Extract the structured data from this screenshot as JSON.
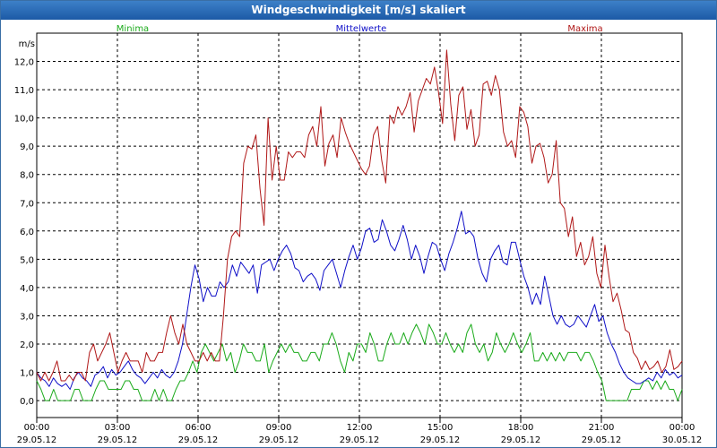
{
  "window": {
    "title": "Windgeschwindigkeit [m/s] skaliert"
  },
  "chart_data": {
    "type": "line",
    "unit": "m/s",
    "ylim": [
      -0.6,
      13.0
    ],
    "y_ticks": [
      "0,0",
      "1,0",
      "2,0",
      "3,0",
      "4,0",
      "5,0",
      "6,0",
      "7,0",
      "8,0",
      "9,0",
      "10,0",
      "11,0",
      "12,0"
    ],
    "x_ticks": [
      {
        "time": "00:00",
        "date": "29.05.12"
      },
      {
        "time": "03:00",
        "date": "29.05.12"
      },
      {
        "time": "06:00",
        "date": "29.05.12"
      },
      {
        "time": "09:00",
        "date": "29.05.12"
      },
      {
        "time": "12:00",
        "date": "29.05.12"
      },
      {
        "time": "15:00",
        "date": "29.05.12"
      },
      {
        "time": "18:00",
        "date": "29.05.12"
      },
      {
        "time": "21:00",
        "date": "29.05.12"
      },
      {
        "time": "00:00",
        "date": "30.05.12"
      }
    ],
    "grid": true,
    "legend_position": "top",
    "series": [
      {
        "name": "Minima",
        "color": "#1aaa1a",
        "values": [
          0.7,
          0.4,
          0.0,
          0.0,
          0.4,
          0.0,
          0.0,
          0.0,
          0.0,
          0.4,
          0.4,
          0.0,
          0.0,
          0.0,
          0.4,
          0.7,
          0.7,
          0.4,
          0.4,
          0.4,
          0.4,
          0.7,
          0.7,
          0.4,
          0.4,
          0.0,
          0.0,
          0.0,
          0.4,
          0.0,
          0.4,
          0.0,
          0.0,
          0.4,
          0.7,
          0.7,
          1.0,
          1.4,
          1.0,
          1.7,
          2.0,
          1.7,
          1.4,
          1.7,
          2.0,
          1.4,
          1.7,
          1.0,
          1.4,
          2.0,
          1.7,
          1.7,
          1.4,
          1.4,
          2.0,
          1.0,
          1.4,
          1.7,
          2.0,
          1.7,
          2.0,
          1.7,
          1.7,
          1.4,
          1.4,
          1.7,
          1.7,
          1.4,
          2.0,
          2.0,
          2.4,
          2.0,
          1.4,
          1.0,
          1.7,
          1.4,
          2.0,
          2.0,
          1.7,
          2.4,
          2.0,
          1.4,
          1.4,
          2.0,
          2.4,
          2.0,
          2.0,
          2.4,
          2.0,
          2.4,
          2.7,
          2.4,
          2.0,
          2.7,
          2.4,
          2.0,
          2.0,
          2.4,
          2.0,
          1.7,
          2.0,
          1.7,
          2.4,
          2.7,
          2.0,
          1.7,
          2.0,
          1.4,
          1.7,
          2.4,
          2.0,
          1.7,
          2.0,
          2.4,
          2.0,
          1.7,
          2.0,
          2.4,
          1.4,
          1.4,
          1.7,
          1.4,
          1.7,
          1.4,
          1.7,
          1.4,
          1.7,
          1.7,
          1.7,
          1.4,
          1.7,
          1.7,
          1.4,
          1.0,
          0.7,
          0.0,
          0.0,
          0.0,
          0.0,
          0.0,
          0.0,
          0.4,
          0.4,
          0.4,
          0.7,
          0.7,
          0.4,
          0.7,
          0.4,
          0.7,
          0.4,
          0.4,
          0.0,
          0.4
        ]
      },
      {
        "name": "Mittelwerte",
        "color": "#1010c8",
        "values": [
          1.0,
          0.8,
          0.7,
          0.5,
          0.8,
          0.6,
          0.5,
          0.6,
          0.4,
          0.8,
          1.0,
          0.8,
          0.7,
          0.5,
          0.9,
          1.0,
          1.2,
          0.8,
          1.1,
          0.9,
          1.0,
          1.2,
          1.4,
          1.1,
          0.9,
          0.8,
          0.6,
          0.8,
          1.0,
          0.8,
          1.1,
          0.9,
          0.8,
          1.0,
          1.4,
          2.0,
          3.0,
          4.0,
          4.8,
          4.3,
          3.5,
          4.0,
          3.7,
          3.7,
          4.2,
          4.0,
          4.2,
          4.8,
          4.4,
          4.9,
          4.7,
          4.5,
          4.8,
          3.8,
          4.8,
          4.9,
          5.0,
          4.6,
          5.0,
          5.3,
          5.5,
          5.2,
          4.7,
          4.6,
          4.2,
          4.4,
          4.5,
          4.3,
          3.9,
          4.6,
          4.8,
          5.0,
          4.5,
          4.0,
          4.6,
          5.1,
          5.5,
          5.0,
          5.4,
          6.0,
          6.1,
          5.6,
          5.7,
          6.4,
          6.0,
          5.5,
          5.3,
          5.7,
          6.2,
          5.7,
          5.0,
          5.5,
          5.1,
          4.5,
          5.1,
          5.6,
          5.5,
          5.0,
          4.6,
          5.2,
          5.6,
          6.1,
          6.7,
          5.9,
          6.0,
          5.8,
          5.0,
          4.5,
          4.2,
          5.0,
          5.3,
          5.5,
          4.9,
          4.8,
          5.6,
          5.6,
          5.0,
          4.4,
          4.0,
          3.4,
          3.8,
          3.4,
          4.4,
          3.7,
          3.0,
          2.7,
          3.0,
          2.7,
          2.6,
          2.7,
          3.0,
          2.8,
          2.6,
          3.0,
          3.4,
          2.8,
          3.0,
          2.4,
          2.0,
          1.7,
          1.3,
          1.0,
          0.8,
          0.7,
          0.6,
          0.6,
          0.7,
          0.8,
          0.7,
          1.0,
          0.8,
          1.1,
          0.9,
          1.0,
          0.8,
          0.9
        ]
      },
      {
        "name": "Maxima",
        "color": "#b01818",
        "values": [
          1.0,
          0.7,
          1.0,
          0.7,
          1.0,
          1.4,
          0.7,
          0.7,
          0.9,
          0.7,
          1.0,
          1.0,
          0.7,
          1.7,
          2.0,
          1.4,
          1.7,
          2.0,
          2.4,
          1.7,
          1.0,
          1.4,
          1.7,
          1.4,
          1.4,
          1.4,
          1.0,
          1.7,
          1.4,
          1.4,
          1.7,
          1.7,
          2.4,
          3.0,
          2.4,
          2.0,
          2.7,
          2.0,
          1.7,
          1.4,
          1.4,
          1.7,
          1.4,
          1.7,
          1.4,
          1.4,
          3.0,
          5.0,
          5.8,
          6.0,
          5.8,
          8.4,
          9.0,
          8.9,
          9.4,
          7.5,
          6.2,
          10.0,
          7.8,
          9.0,
          7.8,
          7.8,
          8.8,
          8.6,
          8.8,
          8.8,
          8.6,
          9.4,
          9.7,
          9.0,
          10.4,
          8.3,
          9.1,
          9.4,
          8.6,
          10.0,
          9.5,
          9.1,
          8.8,
          8.5,
          8.2,
          8.0,
          8.3,
          9.4,
          9.7,
          8.5,
          7.7,
          10.1,
          9.8,
          10.4,
          10.1,
          10.4,
          10.9,
          9.5,
          10.6,
          11.0,
          11.4,
          11.2,
          11.8,
          10.9,
          9.8,
          12.4,
          10.5,
          9.2,
          10.8,
          11.1,
          9.6,
          10.3,
          9.0,
          9.4,
          11.2,
          11.3,
          10.8,
          11.5,
          11.0,
          9.5,
          9.0,
          9.2,
          8.6,
          10.4,
          10.2,
          9.7,
          8.4,
          9.0,
          9.1,
          8.6,
          7.7,
          8.0,
          9.2,
          7.0,
          6.8,
          5.8,
          6.5,
          5.1,
          5.6,
          4.8,
          5.1,
          5.8,
          4.5,
          4.0,
          5.5,
          4.4,
          3.5,
          3.8,
          3.2,
          2.5,
          2.4,
          1.7,
          1.5,
          1.1,
          1.4,
          1.1,
          1.2,
          1.4,
          1.0,
          1.2,
          1.8,
          1.1,
          1.2,
          1.4
        ]
      }
    ]
  }
}
